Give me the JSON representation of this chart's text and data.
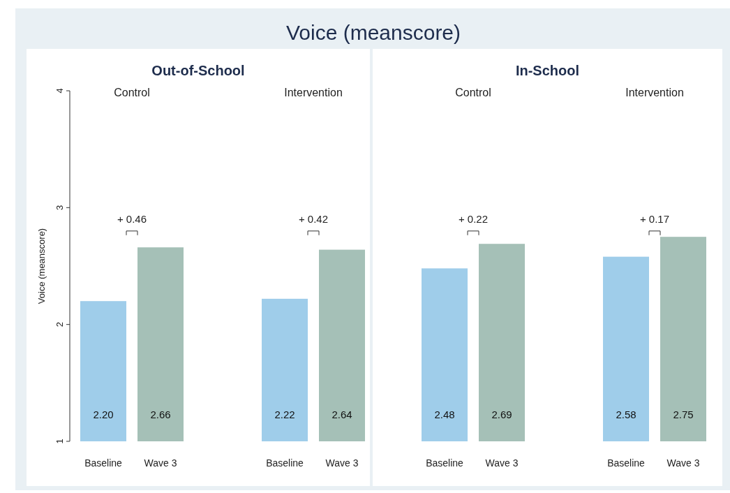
{
  "chart_data": [
    {
      "type": "bar",
      "title": "Voice (meanscore)",
      "subtitle": "Out-of-School",
      "ylabel": "Voice (meanscore)",
      "categories": [
        "Baseline",
        "Wave 3",
        "Baseline",
        "Wave 3"
      ],
      "values": [
        2.2,
        2.66,
        2.22,
        2.64
      ],
      "value_labels": [
        "2.20",
        "2.66",
        "2.22",
        "2.64"
      ],
      "colors": [
        "#9fcdea",
        "#a5c0b7",
        "#9fcdea",
        "#a5c0b7"
      ],
      "ylim": [
        1,
        4
      ],
      "yticks": [
        1,
        2,
        3,
        4
      ],
      "annotations": [
        "Control",
        "Intervention",
        "+ 0.46",
        "+ 0.42"
      ]
    },
    {
      "type": "bar",
      "title": "In-School",
      "categories": [
        "Baseline",
        "Wave 3",
        "Baseline",
        "Wave 3"
      ],
      "values": [
        2.48,
        2.69,
        2.58,
        2.75
      ],
      "value_labels": [
        "2.48",
        "2.69",
        "2.58",
        "2.75"
      ],
      "colors": [
        "#9fcdea",
        "#a5c0b7",
        "#9fcdea",
        "#a5c0b7"
      ],
      "ylim": [
        1,
        4
      ],
      "tick_labels": "x",
      "annotations": [
        "Control",
        "Intervention",
        "+ 0.22",
        "+ 0.17"
      ]
    }
  ]
}
